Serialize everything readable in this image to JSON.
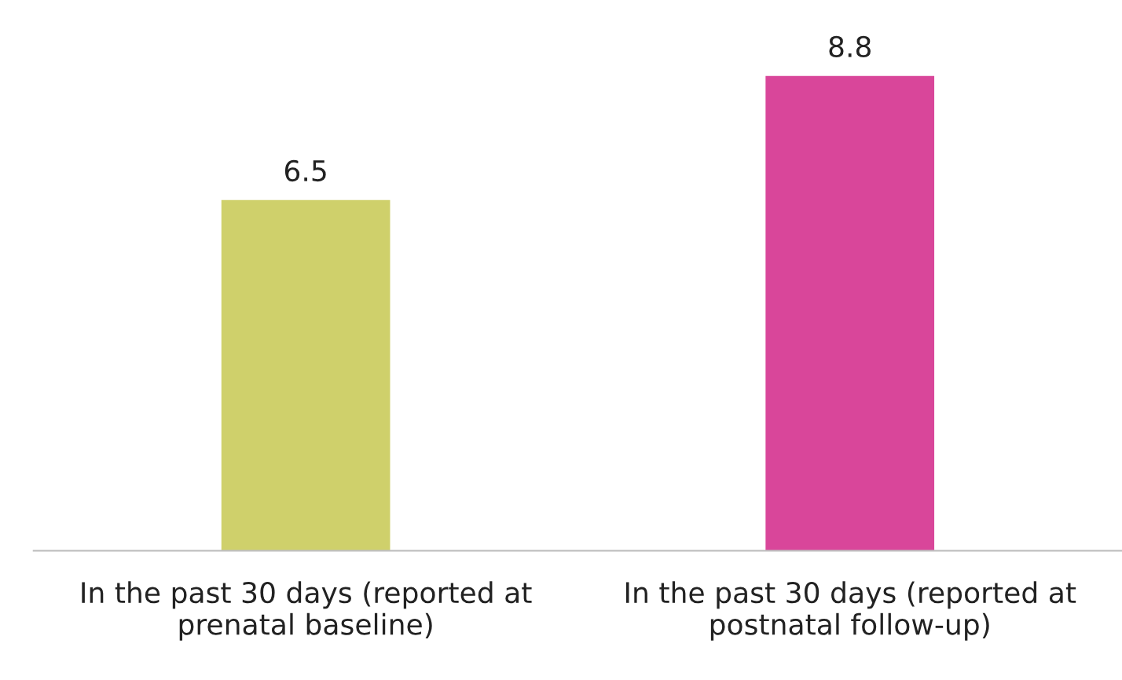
{
  "chart_data": {
    "type": "bar",
    "categories": [
      "In the past 30 days (reported at\nprenatal baseline)",
      "In the past 30 days (reported at\npostnatal follow-up)"
    ],
    "values": [
      6.5,
      8.8
    ],
    "colors": [
      "#cfd06b",
      "#d9469a"
    ],
    "data_labels": true,
    "grid": false,
    "legend": false
  }
}
